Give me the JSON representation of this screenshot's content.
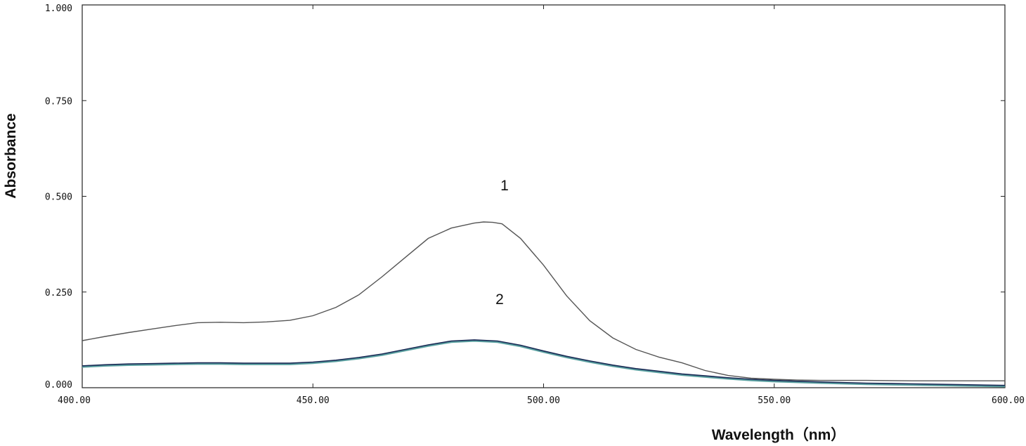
{
  "chart_data": {
    "type": "line",
    "xlabel": "Wavelength（nm）",
    "ylabel": "Absorbance",
    "xlim": [
      400,
      600
    ],
    "ylim": [
      0,
      1
    ],
    "x_ticks": [
      "400.00",
      "450.00",
      "500.00",
      "550.00",
      "600.00"
    ],
    "y_ticks": [
      "0.000",
      "0.250",
      "0.500",
      "0.750",
      "1.000"
    ],
    "grid": false,
    "colors": {
      "series1": "#555555",
      "series2": "#1a2a55",
      "series2_shadow": "#5aa0a0"
    },
    "series": [
      {
        "name": "1",
        "x": [
          400,
          405,
          410,
          415,
          420,
          425,
          430,
          435,
          440,
          445,
          450,
          455,
          460,
          465,
          470,
          475,
          480,
          485,
          487,
          489,
          491,
          495,
          500,
          505,
          510,
          515,
          520,
          525,
          530,
          535,
          540,
          545,
          550,
          555,
          560,
          570,
          580,
          590,
          600
        ],
        "y": [
          0.123,
          0.134,
          0.144,
          0.153,
          0.162,
          0.17,
          0.171,
          0.17,
          0.172,
          0.176,
          0.188,
          0.21,
          0.243,
          0.29,
          0.34,
          0.39,
          0.417,
          0.43,
          0.433,
          0.432,
          0.428,
          0.39,
          0.32,
          0.24,
          0.175,
          0.13,
          0.1,
          0.08,
          0.065,
          0.045,
          0.032,
          0.025,
          0.022,
          0.02,
          0.019,
          0.019,
          0.018,
          0.018,
          0.018
        ]
      },
      {
        "name": "2",
        "x": [
          400,
          405,
          410,
          415,
          420,
          425,
          430,
          435,
          440,
          445,
          450,
          455,
          460,
          465,
          470,
          475,
          480,
          485,
          490,
          495,
          500,
          505,
          510,
          515,
          520,
          525,
          530,
          535,
          540,
          545,
          550,
          560,
          570,
          580,
          590,
          600
        ],
        "y": [
          0.057,
          0.06,
          0.062,
          0.063,
          0.064,
          0.065,
          0.065,
          0.064,
          0.064,
          0.064,
          0.067,
          0.072,
          0.079,
          0.088,
          0.1,
          0.112,
          0.122,
          0.125,
          0.122,
          0.111,
          0.096,
          0.082,
          0.07,
          0.059,
          0.05,
          0.043,
          0.036,
          0.031,
          0.026,
          0.022,
          0.019,
          0.015,
          0.012,
          0.01,
          0.008,
          0.006
        ]
      }
    ]
  }
}
